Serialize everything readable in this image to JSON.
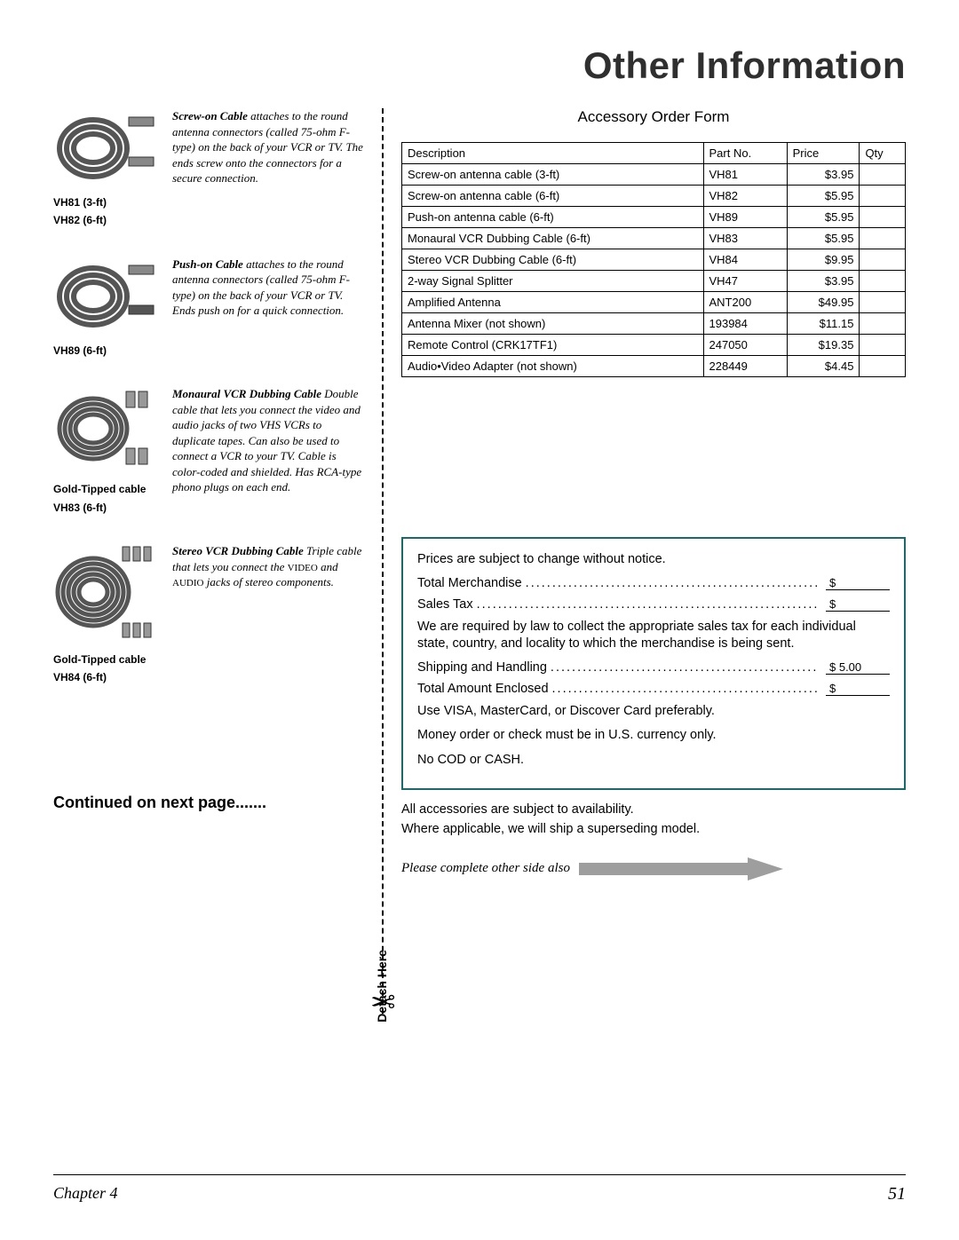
{
  "page": {
    "title": "Other Information",
    "continued": "Continued on next page.......",
    "detach": "Detach Here",
    "chapter": "Chapter 4",
    "pageNum": "51"
  },
  "products": [
    {
      "labels": [
        "VH81 (3-ft)",
        "VH82 (6-ft)"
      ],
      "lead": "Screw-on Cable",
      "desc": " attaches to the round antenna connectors (called 75-ohm F-type) on the back of your VCR or TV. The ends screw onto the connectors for a secure connection."
    },
    {
      "labels": [
        "VH89 (6-ft)"
      ],
      "lead": "Push-on Cable",
      "desc": " attaches to the round antenna connectors (called 75-ohm F-type) on the back of your VCR or TV. Ends push on for a quick connection."
    },
    {
      "labels": [
        "Gold-Tipped cable",
        "VH83 (6-ft)"
      ],
      "lead": "Monaural VCR Dubbing Cable",
      "desc": " Double cable that lets you connect the video and audio jacks of two VHS VCRs to duplicate tapes. Can also be used to connect a VCR to your TV. Cable is color-coded and shielded. Has RCA-type phono plugs on each end."
    },
    {
      "labels": [
        "Gold-Tipped cable",
        "VH84 (6-ft)"
      ],
      "lead": "Stereo VCR Dubbing Cable",
      "desc": " Triple cable that lets you connect the ",
      "sc1": "VIDEO",
      "mid": " and ",
      "sc2": "AUDIO",
      "tail": " jacks of stereo components."
    }
  ],
  "form": {
    "title": "Accessory Order Form",
    "columns": [
      "Description",
      "Part No.",
      "Price",
      "Qty"
    ],
    "rows": [
      [
        "Screw-on antenna cable (3-ft)",
        "VH81",
        "$3.95",
        ""
      ],
      [
        "Screw-on antenna cable (6-ft)",
        "VH82",
        "$5.95",
        ""
      ],
      [
        "Push-on antenna cable (6-ft)",
        "VH89",
        "$5.95",
        ""
      ],
      [
        "Monaural VCR Dubbing Cable (6-ft)",
        "VH83",
        "$5.95",
        ""
      ],
      [
        "Stereo VCR Dubbing Cable (6-ft)",
        "VH84",
        "$9.95",
        ""
      ],
      [
        "2-way Signal Splitter",
        "VH47",
        "$3.95",
        ""
      ],
      [
        "Amplified Antenna",
        "ANT200",
        "$49.95",
        ""
      ],
      [
        "Antenna Mixer (not shown)",
        "193984",
        "$11.15",
        ""
      ],
      [
        "Remote Control (CRK17TF1)",
        "247050",
        "$19.35",
        ""
      ],
      [
        "Audio•Video Adapter (not shown)",
        "228449",
        "$4.45",
        ""
      ]
    ]
  },
  "summary": {
    "notice": "Prices are subject to change without notice.",
    "merch": "Total Merchandise",
    "tax": "Sales Tax",
    "taxNote": "We are required by law to collect the appropriate sales tax for each individual state, country, and locality to which the merchandise is being sent.",
    "ship": "Shipping and Handling",
    "shipVal": "$    5.00",
    "total": "Total Amount Enclosed",
    "cc": "Use VISA, MasterCard, or Discover Card preferably.",
    "mo": "Money order or check must be in U.S. currency only.",
    "cod": "No COD or CASH.",
    "avail": "All accessories are subject to availability.",
    "super": "Where applicable, we will ship a superseding model.",
    "complete": "Please complete other side also"
  },
  "colors": {
    "box_border": "#1b6a6a",
    "arrow": "#9e9e9e",
    "cable": "#6f6f6f"
  }
}
